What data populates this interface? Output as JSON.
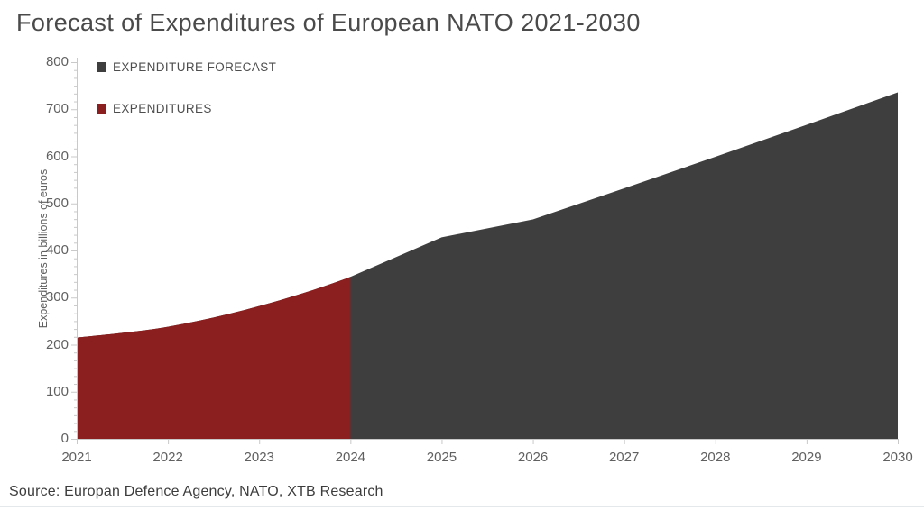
{
  "title": "Forecast of Expenditures of European NATO 2021-2030",
  "source_note": "Source: Europan Defence Agency, NATO, XTB Research",
  "colors": {
    "forecast_area": "#3e3e3e",
    "expenditures_area": "#8b1e1e",
    "axis_line": "#c9c9c9",
    "tick_label": "#606060",
    "title_text": "#4a4a4a",
    "legend_text": "#4d4d4d",
    "source_text": "#3c3c3c"
  },
  "legend": {
    "items": [
      {
        "label": "EXPENDITURE FORECAST",
        "color": "#3e3e3e"
      },
      {
        "label": "EXPENDITURES",
        "color": "#8b1e1e"
      }
    ]
  },
  "chart_data": {
    "type": "area",
    "title": "Forecast of Expenditures of European NATO 2021-2030",
    "x": [
      2021,
      2022,
      2023,
      2024,
      2025,
      2026,
      2027,
      2028,
      2029,
      2030
    ],
    "values": [
      215,
      238,
      282,
      344,
      428,
      466,
      532,
      599,
      667,
      736
    ],
    "split_x": 2024,
    "series": [
      {
        "name": "EXPENDITURES",
        "role": "actual",
        "color": "#8b1e1e",
        "x": [
          2021,
          2022,
          2023,
          2024
        ],
        "values": [
          215,
          238,
          282,
          344
        ]
      },
      {
        "name": "EXPENDITURE FORECAST",
        "role": "forecast",
        "color": "#3e3e3e",
        "x": [
          2024,
          2025,
          2026,
          2027,
          2028,
          2029,
          2030
        ],
        "values": [
          344,
          428,
          466,
          532,
          599,
          667,
          736
        ]
      }
    ],
    "xlabel": "",
    "ylabel": "Expenditures in billions of euros",
    "units": "billions of euros",
    "ylim": [
      0,
      800
    ],
    "y_ticks": [
      0,
      100,
      200,
      300,
      400,
      500,
      600,
      700,
      800
    ],
    "y_minor_per_major": 6,
    "grid": false,
    "legend_position": "top-left-inside"
  }
}
